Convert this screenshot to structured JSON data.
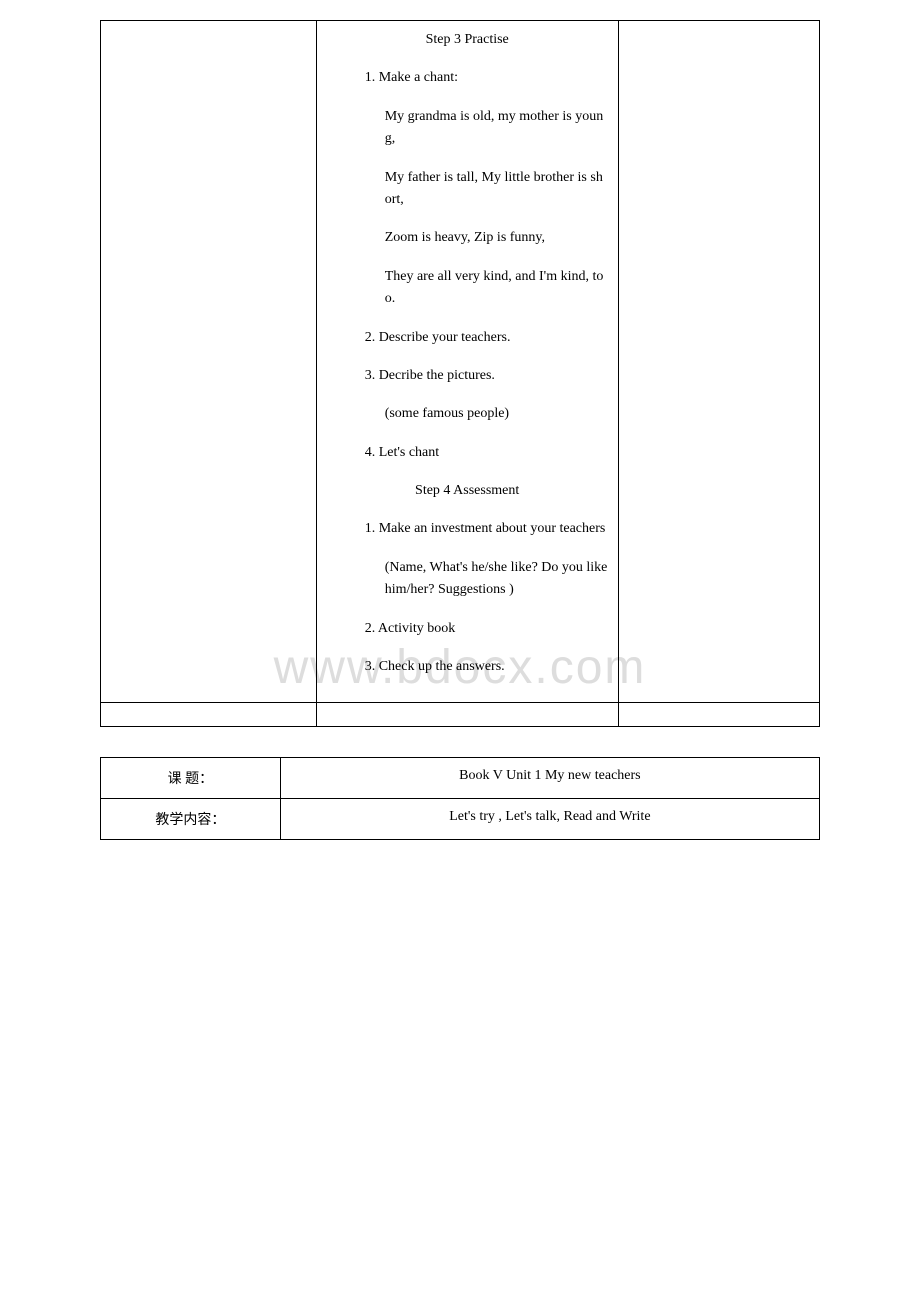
{
  "watermark": "www.bdocx.com",
  "table1": {
    "step3_heading": "Step 3  Practise",
    "item1_label": "1. Make a chant:",
    "chant_line1": "My grandma is old, my mother is young,",
    "chant_line2": "My father is tall, My little brother is short,",
    "chant_line3": "Zoom is heavy, Zip is funny,",
    "chant_line4": "They are all very kind, and I'm kind, too.",
    "item2": "2. Describe your teachers.",
    "item3": "3. Decribe the pictures.",
    "item3_sub": "(some famous people)",
    "item4": "4. Let's chant",
    "step4_heading": "Step 4  Assessment",
    "item4_1": "1. Make an investment about your teachers",
    "item4_1_sub": "(Name, What's he/she like? Do you like him/her? Suggestions )",
    "item4_2": "2. Activity book",
    "item4_3": "3. Check up the answers."
  },
  "table2": {
    "row1_label": "课 题：",
    "row1_value": "Book V Unit 1  My new teachers",
    "row2_label": "教学内容：",
    "row2_value": "Let's try , Let's talk, Read and Write"
  }
}
